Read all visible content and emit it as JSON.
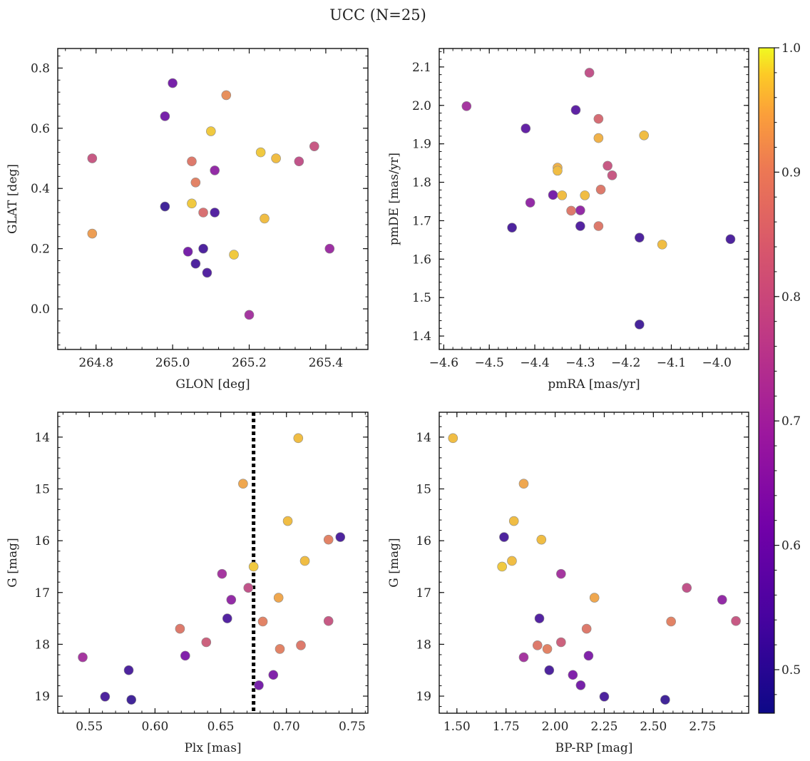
{
  "title": "UCC (N=25)",
  "colorbar": {
    "vmin": 0.465,
    "vmax": 1.0,
    "ticks": [
      0.5,
      0.6,
      0.7,
      0.8,
      0.9,
      1.0
    ],
    "tick_labels": [
      "0.5",
      "0.6",
      "0.7",
      "0.8",
      "0.9",
      "1.0"
    ],
    "colormap": "plasma"
  },
  "chart_data": [
    {
      "type": "scatter",
      "name": "glon-glat",
      "xlabel": "GLON [deg]",
      "ylabel": "GLAT [deg]",
      "xlim": [
        264.7,
        265.51
      ],
      "ylim": [
        -0.135,
        0.865
      ],
      "xticks": [
        264.8,
        265.0,
        265.2,
        265.4
      ],
      "xtick_labels": [
        "264.8",
        "265.0",
        "265.2",
        "265.4"
      ],
      "yticks": [
        0.0,
        0.2,
        0.4,
        0.6,
        0.8
      ],
      "ytick_labels": [
        "0.0",
        "0.2",
        "0.4",
        "0.6",
        "0.8"
      ],
      "x": [
        265.0,
        264.98,
        265.14,
        265.1,
        264.79,
        265.05,
        265.23,
        265.27,
        265.33,
        265.37,
        265.11,
        265.06,
        264.98,
        265.05,
        265.08,
        265.11,
        265.24,
        265.04,
        265.08,
        265.06,
        265.16,
        265.09,
        265.41,
        264.79,
        265.2
      ],
      "y": [
        0.75,
        0.64,
        0.71,
        0.59,
        0.5,
        0.49,
        0.52,
        0.5,
        0.49,
        0.54,
        0.46,
        0.42,
        0.34,
        0.35,
        0.32,
        0.32,
        0.3,
        0.19,
        0.2,
        0.15,
        0.18,
        0.12,
        0.2,
        0.25,
        -0.02
      ],
      "c": [
        0.6,
        0.6,
        0.92,
        0.98,
        0.8,
        0.88,
        0.98,
        0.97,
        0.78,
        0.8,
        0.66,
        0.9,
        0.5,
        0.98,
        0.86,
        0.53,
        0.97,
        0.6,
        0.52,
        0.52,
        0.98,
        0.53,
        0.68,
        0.94,
        0.7
      ]
    },
    {
      "type": "scatter",
      "name": "pmra-pmde",
      "xlabel": "pmRA [mas/yr]",
      "ylabel": "pmDE [mas/yr]",
      "xlim": [
        -4.61,
        -3.93
      ],
      "ylim": [
        1.365,
        2.148
      ],
      "xticks": [
        -4.6,
        -4.5,
        -4.4,
        -4.3,
        -4.2,
        -4.1,
        -4.0
      ],
      "xtick_labels": [
        "−4.6",
        "−4.5",
        "−4.4",
        "−4.3",
        "−4.2",
        "−4.1",
        "−4.0"
      ],
      "yticks": [
        1.4,
        1.5,
        1.6,
        1.7,
        1.8,
        1.9,
        2.0,
        2.1
      ],
      "ytick_labels": [
        "1.4",
        "1.5",
        "1.6",
        "1.7",
        "1.8",
        "1.9",
        "2.0",
        "2.1"
      ],
      "x": [
        -4.28,
        -4.55,
        -4.31,
        -4.26,
        -4.42,
        -4.26,
        -4.16,
        -4.24,
        -4.23,
        -4.35,
        -4.35,
        -4.36,
        -4.34,
        -4.29,
        -4.255,
        -4.41,
        -4.32,
        -4.3,
        -4.45,
        -4.3,
        -4.26,
        -4.17,
        -3.97,
        -4.12,
        -4.17
      ],
      "y": [
        2.085,
        1.998,
        1.988,
        1.965,
        1.94,
        1.915,
        1.922,
        1.843,
        1.818,
        1.838,
        1.83,
        1.767,
        1.766,
        1.766,
        1.781,
        1.747,
        1.726,
        1.727,
        1.682,
        1.686,
        1.686,
        1.656,
        1.652,
        1.638,
        1.43
      ],
      "c": [
        0.78,
        0.7,
        0.55,
        0.85,
        0.56,
        0.96,
        0.97,
        0.8,
        0.8,
        0.96,
        0.97,
        0.6,
        0.97,
        0.97,
        0.88,
        0.66,
        0.88,
        0.66,
        0.52,
        0.53,
        0.88,
        0.52,
        0.52,
        0.97,
        0.51
      ]
    },
    {
      "type": "scatter",
      "name": "plx-g",
      "xlabel": "Plx [mas]",
      "ylabel": "G [mag]",
      "xlim": [
        0.526,
        0.762
      ],
      "ylim": [
        19.33,
        13.52
      ],
      "y_inverted": true,
      "xticks": [
        0.55,
        0.6,
        0.65,
        0.7,
        0.75
      ],
      "xtick_labels": [
        "0.55",
        "0.60",
        "0.65",
        "0.70",
        "0.75"
      ],
      "yticks": [
        14,
        15,
        16,
        17,
        18,
        19
      ],
      "ytick_labels": [
        "14",
        "15",
        "16",
        "17",
        "18",
        "19"
      ],
      "vline": 0.675,
      "x": [
        0.709,
        0.667,
        0.701,
        0.741,
        0.732,
        0.714,
        0.675,
        0.651,
        0.671,
        0.658,
        0.694,
        0.655,
        0.682,
        0.732,
        0.619,
        0.639,
        0.711,
        0.695,
        0.545,
        0.623,
        0.58,
        0.69,
        0.679,
        0.562,
        0.582
      ],
      "y": [
        14.02,
        14.9,
        15.62,
        15.93,
        15.98,
        16.39,
        16.5,
        16.64,
        16.91,
        17.14,
        17.1,
        17.5,
        17.56,
        17.55,
        17.7,
        17.96,
        18.02,
        18.09,
        18.25,
        18.22,
        18.5,
        18.59,
        18.79,
        19.01,
        19.07
      ],
      "c": [
        0.97,
        0.95,
        0.97,
        0.52,
        0.9,
        0.97,
        0.98,
        0.7,
        0.78,
        0.66,
        0.95,
        0.53,
        0.9,
        0.8,
        0.88,
        0.82,
        0.88,
        0.9,
        0.7,
        0.62,
        0.52,
        0.62,
        0.6,
        0.52,
        0.5
      ]
    },
    {
      "type": "scatter",
      "name": "bprp-g",
      "xlabel": "BP-RP [mag]",
      "ylabel": "G [mag]",
      "xlim": [
        1.41,
        2.985
      ],
      "ylim": [
        19.33,
        13.52
      ],
      "y_inverted": true,
      "xticks": [
        1.5,
        1.75,
        2.0,
        2.25,
        2.5,
        2.75
      ],
      "xtick_labels": [
        "1.50",
        "1.75",
        "2.00",
        "2.25",
        "2.50",
        "2.75"
      ],
      "yticks": [
        14,
        15,
        16,
        17,
        18,
        19
      ],
      "ytick_labels": [
        "14",
        "15",
        "16",
        "17",
        "18",
        "19"
      ],
      "x": [
        1.48,
        1.84,
        1.79,
        1.74,
        1.93,
        1.78,
        1.73,
        2.03,
        2.67,
        2.85,
        2.2,
        2.92,
        1.92,
        2.59,
        2.16,
        2.03,
        1.91,
        1.96,
        1.84,
        2.17,
        1.97,
        2.09,
        2.13,
        2.25,
        2.56
      ],
      "y": [
        14.02,
        14.9,
        15.62,
        15.93,
        15.98,
        16.39,
        16.5,
        16.64,
        16.91,
        17.14,
        17.1,
        17.55,
        17.5,
        17.56,
        17.7,
        17.96,
        18.02,
        18.09,
        18.25,
        18.22,
        18.5,
        18.59,
        18.79,
        19.01,
        19.07
      ],
      "c": [
        0.97,
        0.95,
        0.97,
        0.52,
        0.97,
        0.97,
        0.98,
        0.7,
        0.78,
        0.66,
        0.95,
        0.8,
        0.53,
        0.9,
        0.88,
        0.82,
        0.88,
        0.9,
        0.7,
        0.62,
        0.52,
        0.62,
        0.6,
        0.52,
        0.5
      ]
    }
  ]
}
